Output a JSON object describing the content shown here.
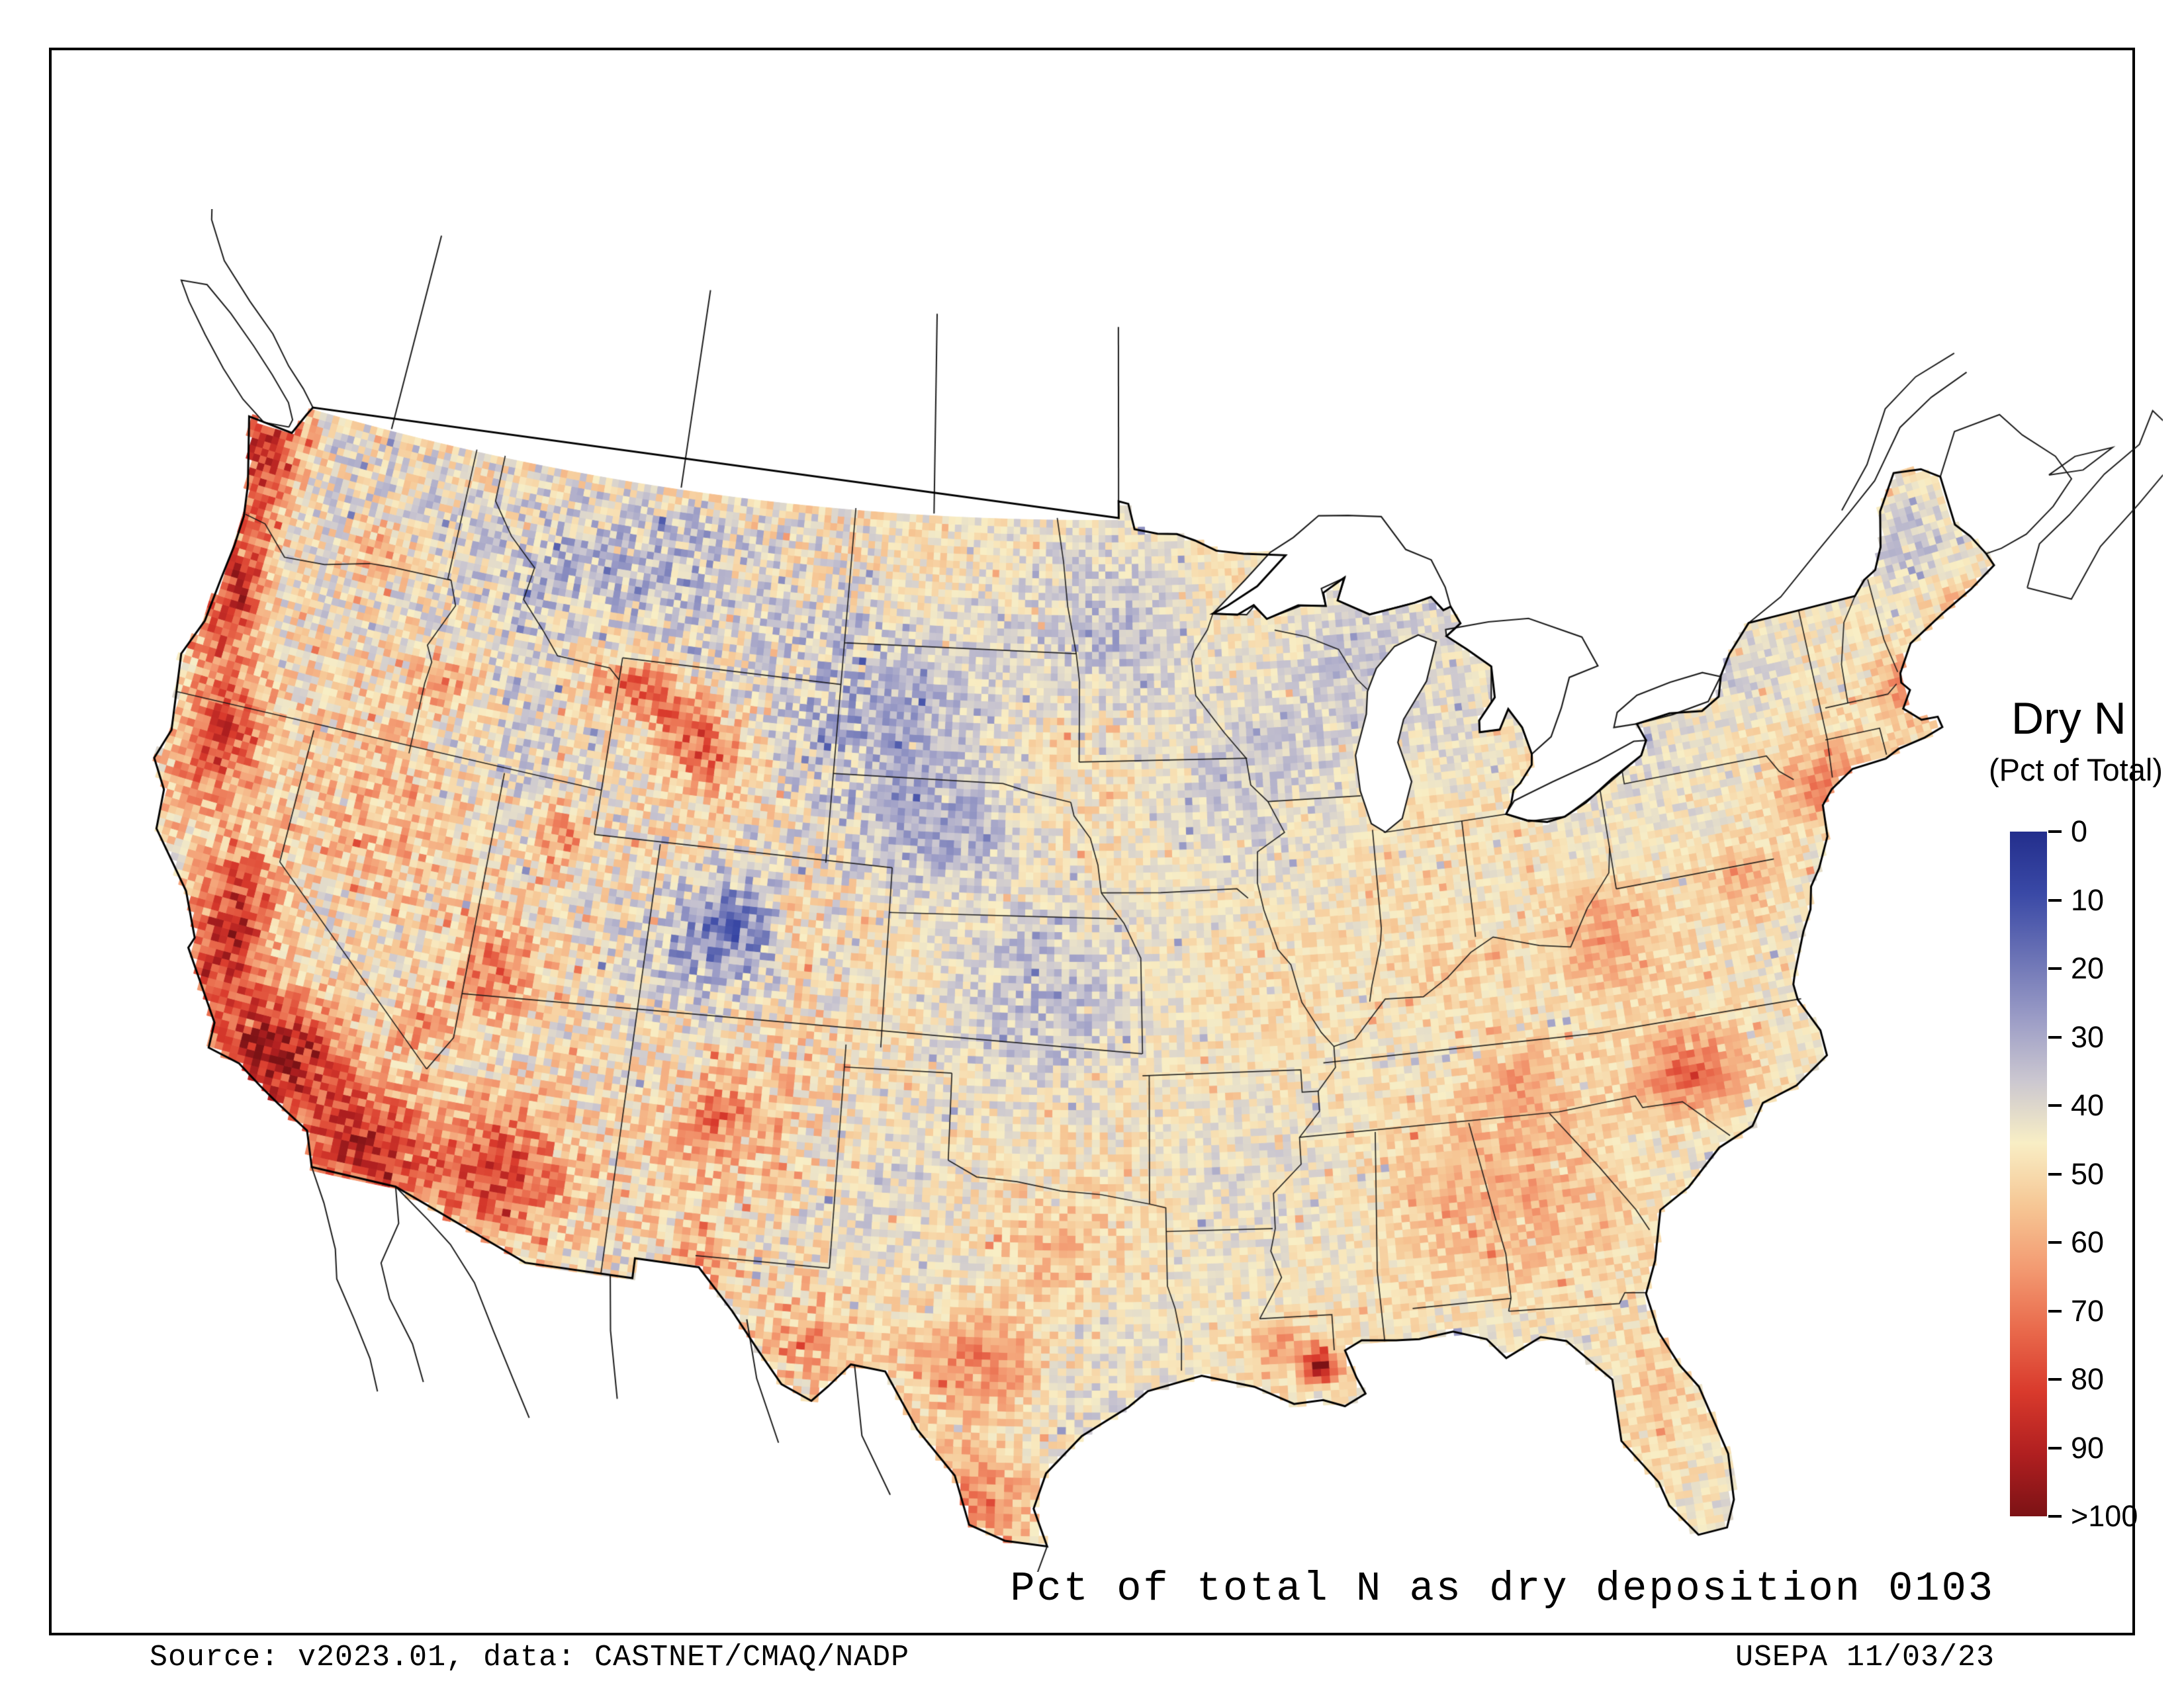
{
  "legend": {
    "title": "Dry N",
    "subtitle": "(Pct of Total)",
    "ticks": [
      "0",
      "10",
      "20",
      "30",
      "40",
      "50",
      "60",
      "70",
      "80",
      "90",
      ">100"
    ],
    "gradient": [
      "#232e8c",
      "#3a49a6",
      "#6a72b5",
      "#9b9cc6",
      "#cbc7d0",
      "#f8eec5",
      "#f6c795",
      "#f39b72",
      "#e96a4c",
      "#d93a2c",
      "#b01f20",
      "#7c1215"
    ]
  },
  "caption": "Pct of total N as dry deposition 0103",
  "footer": {
    "source": "Source: v2023.01, data: CASTNET/CMAQ/NADP",
    "agency": "USEPA 11/03/23"
  }
}
